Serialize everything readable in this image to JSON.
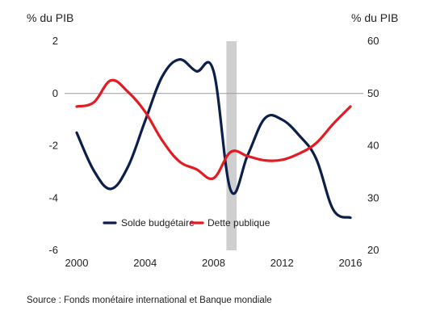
{
  "chart_data": {
    "type": "line",
    "left_axis_unit": "% du PIB",
    "right_axis_unit": "% du PIB",
    "x_ticks": [
      "2000",
      "2004",
      "2008",
      "2012",
      "2016"
    ],
    "left_ticks": [
      "2",
      "0",
      "-2",
      "-4",
      "-6"
    ],
    "right_ticks": [
      "60",
      "50",
      "40",
      "30",
      "20"
    ],
    "xlim": [
      1999.5,
      2016.5
    ],
    "ylim_left": [
      -6,
      2
    ],
    "ylim_right": [
      20,
      60
    ],
    "recession_band": [
      2008.75,
      2009.35
    ],
    "legend_position": "bottom-center",
    "series": [
      {
        "name": "Solde budgétaire",
        "axis": "left",
        "color": "#0b1f4a",
        "x": [
          2000,
          2001,
          2002,
          2003,
          2004,
          2005,
          2006,
          2007,
          2008,
          2009,
          2010,
          2011,
          2012,
          2013,
          2014,
          2015,
          2016
        ],
        "values": [
          -1.5,
          -2.95,
          -3.65,
          -2.8,
          -1.05,
          0.65,
          1.3,
          0.85,
          0.85,
          -3.7,
          -2.35,
          -0.95,
          -1.0,
          -1.6,
          -2.5,
          -4.45,
          -4.75
        ]
      },
      {
        "name": "Dette publique",
        "axis": "right",
        "color": "#e31b23",
        "x": [
          2000,
          2001,
          2002,
          2003,
          2004,
          2005,
          2006,
          2007,
          2008,
          2009,
          2010,
          2011,
          2012,
          2013,
          2014,
          2015,
          2016
        ],
        "values": [
          47.5,
          48.3,
          52.5,
          50.3,
          46.5,
          41.0,
          37.0,
          35.5,
          33.8,
          38.8,
          38.0,
          37.2,
          37.3,
          38.5,
          40.5,
          44.2,
          47.5
        ]
      }
    ]
  },
  "source": "Source : Fonds monétaire international et Banque mondiale"
}
